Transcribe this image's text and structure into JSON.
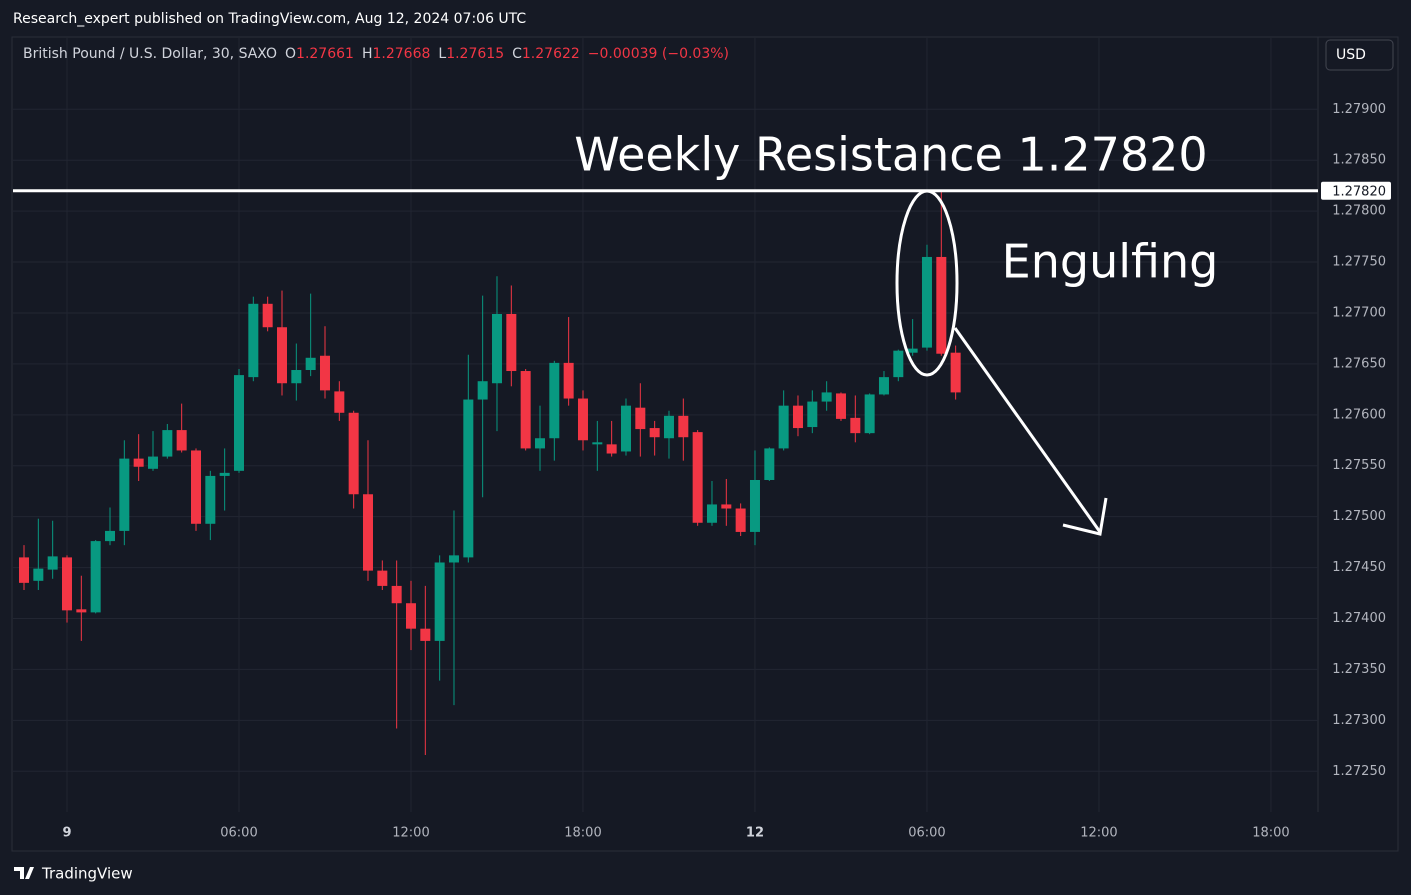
{
  "chart_data": {
    "type": "candlestick",
    "published": "Research_expert published on TradingView.com, Aug 12, 2024 07:06 UTC",
    "symbol": "British Pound / U.S. Dollar, 30, SAXO",
    "ohlc_labels": [
      "O",
      "H",
      "L",
      "C"
    ],
    "change": "−0.00039 (−0.03%)",
    "currency": "USD",
    "brand": "TradingView",
    "up_color": "#089981",
    "down_color": "#f23645",
    "grid": true,
    "categories": [
      null,
      null,
      null,
      "9",
      null,
      null,
      null,
      null,
      null,
      null,
      null,
      null,
      null,
      null,
      null,
      "06:00",
      null,
      null,
      null,
      null,
      null,
      null,
      null,
      null,
      null,
      null,
      null,
      "12:00",
      null,
      null,
      null,
      null,
      null,
      null,
      null,
      null,
      null,
      null,
      null,
      "18:00",
      null,
      null,
      null,
      null,
      null,
      null,
      null,
      null,
      null,
      null,
      null,
      "12",
      null,
      null,
      null,
      null,
      null,
      null,
      null,
      null,
      null,
      null,
      null,
      "06:00",
      null,
      null,
      null,
      null,
      null,
      null,
      null,
      null,
      null,
      null,
      null,
      "12:00",
      null,
      null,
      null,
      null,
      null,
      null,
      null,
      null,
      null,
      null,
      null,
      "18:00",
      null,
      null,
      null
    ],
    "open": [
      1.2746,
      1.27437,
      1.27448,
      1.2746,
      1.27409,
      1.27406,
      1.27476,
      1.27486,
      1.27557,
      1.27547,
      1.27559,
      1.27585,
      1.27565,
      1.27493,
      1.2754,
      1.27545,
      1.27637,
      1.27709,
      1.27686,
      1.27631,
      1.27644,
      1.27658,
      1.27623,
      1.27602,
      1.27522,
      1.27447,
      1.27432,
      1.27415,
      1.2739,
      1.27378,
      1.27455,
      1.2746,
      1.27615,
      1.27631,
      1.27699,
      1.27643,
      1.27567,
      1.27577,
      1.27651,
      1.27616,
      1.27571,
      1.27571,
      1.27564,
      1.27607,
      1.27587,
      1.27577,
      1.27599,
      1.27583,
      1.27494,
      1.27512,
      1.27508,
      1.27485,
      1.27536,
      1.27567,
      1.27609,
      1.27588,
      1.27613,
      1.27621,
      1.27597,
      1.27582,
      1.2762,
      1.27637,
      1.27661,
      1.27666,
      1.27755,
      1.27661,
      null,
      null,
      null,
      null,
      null,
      null,
      null,
      null,
      null,
      null,
      null,
      null,
      null,
      null,
      null,
      null,
      null,
      null,
      null,
      null,
      null,
      null,
      null,
      null,
      null
    ],
    "high": [
      1.27472,
      1.27498,
      1.27496,
      1.27462,
      1.27442,
      1.27477,
      1.27509,
      1.27575,
      1.27581,
      1.27584,
      1.27591,
      1.27611,
      1.27567,
      1.27545,
      1.27567,
      1.27645,
      1.27716,
      1.27716,
      1.27722,
      1.2767,
      1.27719,
      1.27687,
      1.27633,
      1.27604,
      1.27575,
      1.27457,
      1.27457,
      1.27437,
      1.27432,
      1.27462,
      1.27506,
      1.27659,
      1.27717,
      1.27736,
      1.27727,
      1.27645,
      1.27609,
      1.27653,
      1.27696,
      1.27624,
      1.27594,
      1.27594,
      1.27616,
      1.27631,
      1.27594,
      1.27604,
      1.27616,
      1.27585,
      1.27535,
      1.27537,
      1.27513,
      1.27565,
      1.27568,
      1.27624,
      1.27619,
      1.27624,
      1.27633,
      1.27622,
      1.27619,
      1.27621,
      1.27643,
      1.27664,
      1.27694,
      1.27767,
      1.27821,
      1.27668,
      null,
      null,
      null,
      null,
      null,
      null,
      null,
      null,
      null,
      null,
      null,
      null,
      null,
      null,
      null,
      null,
      null,
      null,
      null,
      null,
      null,
      null,
      null,
      null,
      null
    ],
    "low": [
      1.27428,
      1.27428,
      1.27439,
      1.27396,
      1.27378,
      1.27405,
      1.27472,
      1.27472,
      1.27535,
      1.27545,
      1.27557,
      1.27563,
      1.27486,
      1.27477,
      1.27506,
      1.27543,
      1.27633,
      1.27682,
      1.27619,
      1.27614,
      1.27638,
      1.27616,
      1.27594,
      1.27508,
      1.27437,
      1.27428,
      1.27292,
      1.27369,
      1.27266,
      1.27339,
      1.27315,
      1.27455,
      1.27519,
      1.27584,
      1.27628,
      1.27565,
      1.27545,
      1.27555,
      1.27609,
      1.27565,
      1.27545,
      1.27559,
      1.2756,
      1.27559,
      1.2756,
      1.27557,
      1.27555,
      1.27491,
      1.27491,
      1.27491,
      1.27481,
      1.27472,
      1.27535,
      1.27565,
      1.27579,
      1.27582,
      1.27604,
      1.27594,
      1.27573,
      1.27581,
      1.27619,
      1.27633,
      1.27658,
      1.27663,
      1.27658,
      1.27615,
      null,
      null,
      null,
      null,
      null,
      null,
      null,
      null,
      null,
      null,
      null,
      null,
      null,
      null,
      null,
      null,
      null,
      null,
      null,
      null,
      null,
      null,
      null,
      null,
      null
    ],
    "close": [
      1.27435,
      1.27449,
      1.27461,
      1.27408,
      1.27406,
      1.27476,
      1.27486,
      1.27557,
      1.27549,
      1.27559,
      1.27585,
      1.27565,
      1.27493,
      1.2754,
      1.27543,
      1.27639,
      1.27709,
      1.27686,
      1.27631,
      1.27644,
      1.27656,
      1.27624,
      1.27602,
      1.27522,
      1.27447,
      1.27432,
      1.27415,
      1.2739,
      1.27378,
      1.27455,
      1.27462,
      1.27615,
      1.27633,
      1.27699,
      1.27643,
      1.27567,
      1.27577,
      1.27651,
      1.27616,
      1.27575,
      1.27573,
      1.27562,
      1.27609,
      1.27586,
      1.27578,
      1.27599,
      1.27578,
      1.27494,
      1.27512,
      1.27508,
      1.27485,
      1.27536,
      1.27567,
      1.27609,
      1.27587,
      1.27613,
      1.27622,
      1.27596,
      1.27582,
      1.2762,
      1.27637,
      1.27663,
      1.27665,
      1.27755,
      1.2766,
      1.27622,
      null,
      null,
      null,
      null,
      null,
      null,
      null,
      null,
      null,
      null,
      null,
      null,
      null,
      null,
      null,
      null,
      null,
      null,
      null,
      null,
      null,
      null,
      null,
      null,
      null
    ],
    "ylim": [
      1.2721,
      1.2797
    ],
    "yticks": [
      {
        "value": 1.2725,
        "label": "1.27250"
      },
      {
        "value": 1.273,
        "label": "1.27300"
      },
      {
        "value": 1.2735,
        "label": "1.27350"
      },
      {
        "value": 1.274,
        "label": "1.27400"
      },
      {
        "value": 1.2745,
        "label": "1.27450"
      },
      {
        "value": 1.275,
        "label": "1.27500"
      },
      {
        "value": 1.2755,
        "label": "1.27550"
      },
      {
        "value": 1.276,
        "label": "1.27600"
      },
      {
        "value": 1.2765,
        "label": "1.27650"
      },
      {
        "value": 1.277,
        "label": "1.27700"
      },
      {
        "value": 1.2775,
        "label": "1.27750"
      },
      {
        "value": 1.278,
        "label": "1.27800"
      },
      {
        "value": 1.2785,
        "label": "1.27850"
      },
      {
        "value": 1.279,
        "label": "1.27900"
      }
    ],
    "resistance": {
      "value": 1.2782,
      "label": "1.27820"
    },
    "annotations": [
      "Weekly Resistance 1.27820",
      "Engulfing"
    ]
  }
}
